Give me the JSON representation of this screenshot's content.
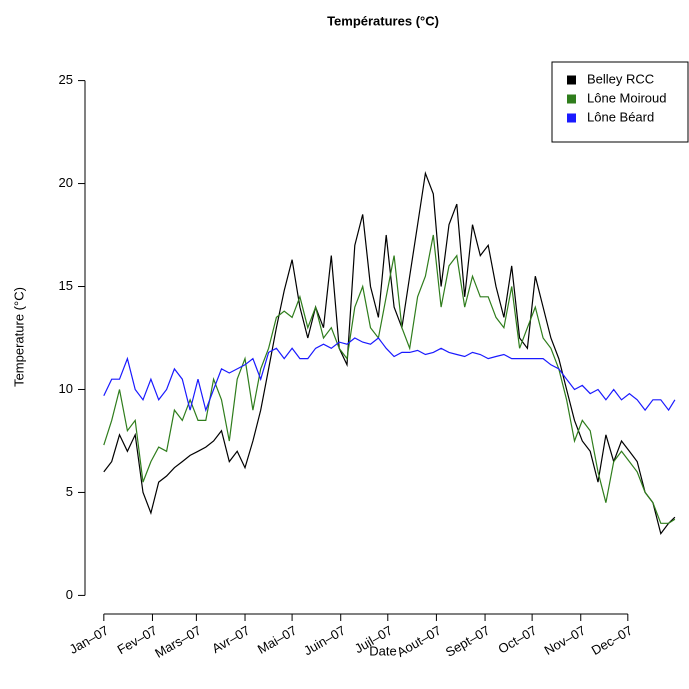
{
  "chart_data": {
    "type": "line",
    "title": "Températures (°C)",
    "xlabel": "Date",
    "ylabel": "Temperature (°C)",
    "x": [
      0,
      5,
      10,
      15,
      20,
      25,
      30,
      35,
      40,
      45,
      50,
      55,
      60,
      65,
      70,
      75,
      80,
      85,
      90,
      95,
      100,
      105,
      110,
      115,
      120,
      125,
      130,
      135,
      140,
      145,
      150,
      155,
      160,
      165,
      170,
      175,
      180,
      185,
      190,
      195,
      200,
      205,
      210,
      215,
      220,
      225,
      230,
      235,
      240,
      245,
      250,
      255,
      260,
      265,
      270,
      275,
      280,
      285,
      290,
      295,
      300,
      305,
      310,
      315,
      320,
      325,
      330,
      335,
      340,
      345,
      350,
      355,
      360,
      364
    ],
    "series": [
      {
        "name": "Belley RCC",
        "color": "#000000",
        "values": [
          6.0,
          6.5,
          7.8,
          7.0,
          7.8,
          5.0,
          4.0,
          5.5,
          5.8,
          6.2,
          6.5,
          6.8,
          7.0,
          7.2,
          7.5,
          8.0,
          6.5,
          7.0,
          6.2,
          7.5,
          9.0,
          11.0,
          13.0,
          14.8,
          16.3,
          14.0,
          12.5,
          14.0,
          13.0,
          16.5,
          12.0,
          11.2,
          17.0,
          18.5,
          15.0,
          13.5,
          17.5,
          14.0,
          13.0,
          15.5,
          18.0,
          20.5,
          19.5,
          15.0,
          18.0,
          19.0,
          14.5,
          18.0,
          16.5,
          17.0,
          15.0,
          13.5,
          16.0,
          12.5,
          12.0,
          15.5,
          14.0,
          12.5,
          11.5,
          10.0,
          8.5,
          7.5,
          7.0,
          5.5,
          7.8,
          6.5,
          7.5,
          7.0,
          6.5,
          5.0,
          4.5,
          3.0,
          3.5,
          3.8
        ]
      },
      {
        "name": "Lône Moiroud",
        "color": "#2f7d1c",
        "values": [
          7.3,
          8.5,
          10.0,
          8.0,
          8.5,
          5.5,
          6.5,
          7.2,
          7.0,
          9.0,
          8.5,
          9.5,
          8.5,
          8.5,
          10.5,
          9.5,
          7.5,
          10.5,
          11.5,
          9.0,
          11.0,
          12.0,
          13.5,
          13.8,
          13.5,
          14.5,
          13.0,
          14.0,
          12.5,
          13.0,
          12.0,
          11.5,
          14.0,
          15.0,
          13.0,
          12.5,
          14.5,
          16.5,
          13.0,
          12.0,
          14.5,
          15.5,
          17.5,
          14.0,
          16.0,
          16.5,
          14.0,
          15.5,
          14.5,
          14.5,
          13.5,
          13.0,
          15.0,
          12.0,
          13.0,
          14.0,
          12.5,
          12.0,
          11.0,
          9.5,
          7.5,
          8.5,
          8.0,
          6.0,
          4.5,
          6.5,
          7.0,
          6.5,
          6.0,
          5.0,
          4.5,
          3.5,
          3.5,
          3.7
        ]
      },
      {
        "name": "Lône Béard",
        "color": "#1a1aff",
        "values": [
          9.7,
          10.5,
          10.5,
          11.5,
          10.0,
          9.5,
          10.5,
          9.5,
          10.0,
          11.0,
          10.5,
          9.0,
          10.5,
          9.0,
          10.0,
          11.0,
          10.8,
          11.0,
          11.2,
          11.5,
          10.5,
          11.8,
          12.0,
          11.5,
          12.0,
          11.5,
          11.5,
          12.0,
          12.2,
          12.0,
          12.3,
          12.2,
          12.5,
          12.3,
          12.2,
          12.5,
          12.0,
          11.6,
          11.8,
          11.8,
          11.9,
          11.7,
          11.8,
          12.0,
          11.8,
          11.7,
          11.6,
          11.8,
          11.7,
          11.5,
          11.6,
          11.7,
          11.5,
          11.5,
          11.5,
          11.5,
          11.5,
          11.2,
          11.0,
          10.5,
          10.0,
          10.2,
          9.8,
          10.0,
          9.5,
          10.0,
          9.5,
          9.8,
          9.5,
          9.0,
          9.5,
          9.5,
          9.0,
          9.5
        ]
      }
    ],
    "xlim": [
      -12,
      373
    ],
    "xticks": [
      {
        "value": 0,
        "label": "Jan–07"
      },
      {
        "value": 31,
        "label": "Fev–07"
      },
      {
        "value": 59,
        "label": "Mars–07"
      },
      {
        "value": 90,
        "label": "Avr–07"
      },
      {
        "value": 120,
        "label": "Mai–07"
      },
      {
        "value": 151,
        "label": "Juin–07"
      },
      {
        "value": 181,
        "label": "Juil–07"
      },
      {
        "value": 212,
        "label": "Aout–07"
      },
      {
        "value": 243,
        "label": "Sept–07"
      },
      {
        "value": 273,
        "label": "Oct–07"
      },
      {
        "value": 304,
        "label": "Nov–07"
      },
      {
        "value": 334,
        "label": "Dec–07"
      }
    ],
    "ylim": [
      -1,
      26
    ],
    "yticks": [
      0,
      5,
      10,
      15,
      20,
      25
    ],
    "legend": "topright"
  }
}
